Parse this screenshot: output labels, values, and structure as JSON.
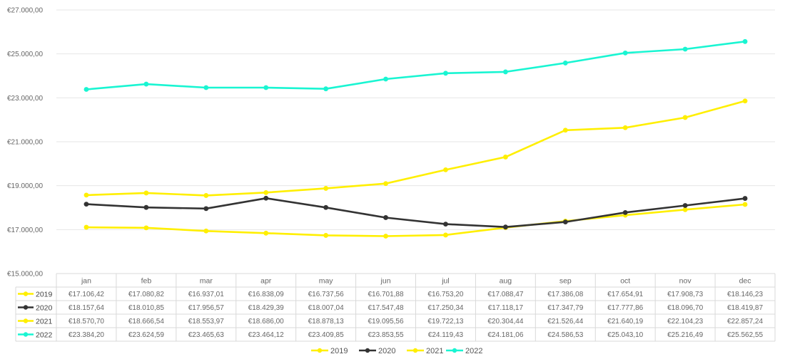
{
  "chart_data": {
    "type": "line",
    "title": "",
    "xlabel": "",
    "ylabel": "",
    "categories": [
      "jan",
      "feb",
      "mar",
      "apr",
      "may",
      "jun",
      "jul",
      "aug",
      "sep",
      "oct",
      "nov",
      "dec"
    ],
    "ylim": [
      15000,
      27000
    ],
    "yticks": [
      15000,
      17000,
      19000,
      21000,
      23000,
      25000,
      27000
    ],
    "ytick_labels": [
      "€15.000,00",
      "€17.000,00",
      "€19.000,00",
      "€21.000,00",
      "€23.000,00",
      "€25.000,00",
      "€27.000,00"
    ],
    "grid": true,
    "legend_position": "bottom",
    "data_table": true,
    "series": [
      {
        "name": "2019",
        "color": "#FFEF00",
        "values": [
          17106.42,
          17080.82,
          16937.01,
          16838.09,
          16737.56,
          16701.88,
          16753.2,
          17088.47,
          17386.08,
          17654.91,
          17908.73,
          18146.23
        ],
        "labels": [
          "€17.106,42",
          "€17.080,82",
          "€16.937,01",
          "€16.838,09",
          "€16.737,56",
          "€16.701,88",
          "€16.753,20",
          "€17.088,47",
          "€17.386,08",
          "€17.654,91",
          "€17.908,73",
          "€18.146,23"
        ]
      },
      {
        "name": "2020",
        "color": "#333333",
        "values": [
          18157.64,
          18010.85,
          17956.57,
          18429.39,
          18007.04,
          17547.48,
          17250.34,
          17118.17,
          17347.79,
          17777.86,
          18096.7,
          18419.87
        ],
        "labels": [
          "€18.157,64",
          "€18.010,85",
          "€17.956,57",
          "€18.429,39",
          "€18.007,04",
          "€17.547,48",
          "€17.250,34",
          "€17.118,17",
          "€17.347,79",
          "€17.777,86",
          "€18.096,70",
          "€18.419,87"
        ]
      },
      {
        "name": "2021",
        "color": "#FFEF00",
        "values": [
          18570.7,
          18666.54,
          18553.97,
          18686.0,
          18878.13,
          19095.56,
          19722.13,
          20304.44,
          21526.44,
          21640.19,
          22104.23,
          22857.24
        ],
        "labels": [
          "€18.570,70",
          "€18.666,54",
          "€18.553,97",
          "€18.686,00",
          "€18.878,13",
          "€19.095,56",
          "€19.722,13",
          "€20.304,44",
          "€21.526,44",
          "€21.640,19",
          "€22.104,23",
          "€22.857,24"
        ]
      },
      {
        "name": "2022",
        "color": "#19F5D2",
        "values": [
          23384.2,
          23624.59,
          23465.63,
          23464.12,
          23409.85,
          23853.55,
          24119.43,
          24181.06,
          24586.53,
          25043.1,
          25216.49,
          25562.55
        ],
        "labels": [
          "€23.384,20",
          "€23.624,59",
          "€23.465,63",
          "€23.464,12",
          "€23.409,85",
          "€23.853,55",
          "€24.119,43",
          "€24.181,06",
          "€24.586,53",
          "€25.043,10",
          "€25.216,49",
          "€25.562,55"
        ]
      }
    ]
  },
  "colors": {
    "grid": "#E6E6E6",
    "table_border": "#D9D9D9",
    "axis_text": "#666666"
  }
}
